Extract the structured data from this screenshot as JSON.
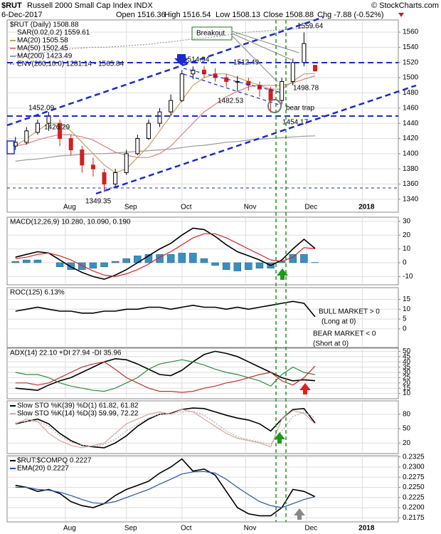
{
  "header": {
    "symbol": "$RUT",
    "name": "Russell 2000 Small Cap Index INDX",
    "credit": "© StockCharts.com",
    "date": "6-Dec-2017",
    "quote": [
      "Open 1516.36",
      "High 1516.54",
      "Low 1508.13",
      "Close 1508.88",
      "Chg -7.88 (-0.52%)"
    ]
  },
  "chart_data": [
    {
      "type": "candlestick",
      "title": "$RUT (Daily) 1508.88",
      "sar_label": "SAR(0.02,0.2) 1559.61",
      "x": [
        1,
        5,
        9,
        13,
        17,
        21,
        25,
        29,
        33,
        37,
        41,
        45,
        49,
        53,
        57,
        61,
        65,
        69,
        73,
        77,
        81,
        85,
        89,
        93,
        97,
        101,
        105,
        109
      ],
      "xlim": [
        -2,
        139
      ],
      "xticks": [
        {
          "value": 19,
          "label": "Aug"
        },
        {
          "value": 41,
          "label": "Sep"
        },
        {
          "value": 61,
          "label": "Oct"
        },
        {
          "value": 84,
          "label": "Nov"
        },
        {
          "value": 106,
          "label": "Dec"
        },
        {
          "value": 126,
          "label": "2018"
        }
      ],
      "ylim": [
        1323,
        1576
      ],
      "yticks": [
        1340,
        1360,
        1380,
        1400,
        1420,
        1440,
        1460,
        1480,
        1500,
        1520,
        1540,
        1560
      ],
      "grid": true,
      "open": [
        1410,
        1415,
        1428,
        1440,
        1440,
        1420,
        1405,
        1385,
        1375,
        1360,
        1375,
        1400,
        1420,
        1440,
        1455,
        1470,
        1505,
        1510,
        1505,
        1500,
        1495,
        1495,
        1490,
        1485,
        1470,
        1495,
        1520,
        1516.36
      ],
      "high": [
        1422,
        1435,
        1445,
        1455,
        1445,
        1425,
        1410,
        1395,
        1380,
        1380,
        1405,
        1425,
        1445,
        1460,
        1478,
        1510,
        1514.94,
        1515,
        1512.49,
        1505,
        1502,
        1500,
        1495,
        1488,
        1500,
        1525,
        1559.64,
        1516.54
      ],
      "low": [
        1405,
        1412,
        1425,
        1430,
        1410,
        1398,
        1375,
        1370,
        1349.35,
        1355,
        1372,
        1398,
        1418,
        1435,
        1450,
        1468,
        1498,
        1500,
        1495,
        1488,
        1482.53,
        1483,
        1475,
        1454.17,
        1465,
        1490,
        1515,
        1508.13
      ],
      "close": [
        1415,
        1430,
        1440,
        1450,
        1420,
        1405,
        1385,
        1380,
        1360,
        1375,
        1400,
        1420,
        1440,
        1455,
        1470,
        1505,
        1510,
        1505,
        1500,
        1495,
        1495,
        1490,
        1485,
        1470,
        1495,
        1520,
        1545,
        1508.88
      ],
      "series": [
        {
          "name": "MA(20) 1505.58",
          "color": "#c8a060",
          "values": [
            1410,
            1420,
            1430,
            1440,
            1440,
            1430,
            1415,
            1400,
            1385,
            1375,
            1380,
            1395,
            1410,
            1430,
            1450,
            1470,
            1490,
            1500,
            1505,
            1505,
            1500,
            1495,
            1490,
            1485,
            1485,
            1495,
            1505,
            1505.58
          ]
        },
        {
          "name": "MA(50) 1502.45",
          "color": "#e08080",
          "values": [
            1410,
            1413,
            1418,
            1422,
            1425,
            1425,
            1422,
            1418,
            1410,
            1402,
            1398,
            1395,
            1395,
            1400,
            1410,
            1425,
            1440,
            1455,
            1465,
            1475,
            1482,
            1488,
            1490,
            1490,
            1490,
            1493,
            1498,
            1502.45
          ]
        },
        {
          "name": "MA(200) 1423.49",
          "color": "#999999",
          "values": [
            1390,
            1392,
            1393,
            1395,
            1397,
            1398,
            1399,
            1400,
            1400,
            1401,
            1402,
            1403,
            1404,
            1405,
            1406,
            1408,
            1410,
            1411,
            1413,
            1415,
            1416,
            1418,
            1419,
            1420,
            1421,
            1422,
            1423,
            1423.49
          ]
        },
        {
          "name": "ENV(200,10.0) 1281.14 - 1565.84",
          "color": "#999999",
          "style": "dotted",
          "values": [
            1529,
            1531,
            1532,
            1534,
            1536,
            1538,
            1539,
            1540,
            1540,
            1541,
            1542,
            1543,
            1544,
            1546,
            1547,
            1549,
            1551,
            1552,
            1554,
            1556,
            1558,
            1560,
            1561,
            1562,
            1563,
            1564,
            1565,
            1565.84
          ]
        }
      ],
      "annotations": [
        "Breakout",
        "1514.94",
        "1512.49",
        "1452.09",
        "1426.29",
        "1349.35",
        "1482.53",
        "1498.78",
        "1454.17",
        "1559.64",
        "bear trap"
      ]
    },
    {
      "type": "line",
      "title": "MACD(12,26,9) 10.280, 10.090, 0.190",
      "x": [
        1,
        5,
        9,
        13,
        17,
        21,
        25,
        29,
        33,
        37,
        41,
        45,
        49,
        53,
        57,
        61,
        65,
        69,
        73,
        77,
        81,
        85,
        89,
        93,
        97,
        101,
        105,
        109
      ],
      "ylim": [
        -16,
        33
      ],
      "yticks": [
        -10,
        0,
        10,
        20,
        30
      ],
      "grid": true,
      "series": [
        {
          "color": "#3a8fc0",
          "kind": "bar",
          "values": [
            1,
            2,
            2,
            0,
            -3,
            -5,
            -5,
            -4,
            -3,
            1,
            3,
            5,
            6,
            6,
            6,
            7,
            7,
            3,
            -2,
            -5,
            -6,
            -5,
            -4,
            -4,
            1,
            6,
            6,
            0.19
          ]
        },
        {
          "color": "#000000",
          "values": [
            4,
            6,
            8,
            7,
            2,
            -3,
            -7,
            -10,
            -12,
            -9,
            -5,
            0,
            5,
            10,
            14,
            20,
            25,
            24,
            19,
            13,
            8,
            5,
            2,
            -2,
            2,
            10,
            17,
            10.28
          ]
        },
        {
          "color": "#e02020",
          "values": [
            3,
            4,
            6,
            7,
            5,
            2,
            -2,
            -6,
            -9,
            -10,
            -8,
            -5,
            -1,
            4,
            8,
            13,
            18,
            21,
            21,
            18,
            14,
            10,
            6,
            2,
            1,
            4,
            11,
            10.09
          ]
        }
      ]
    },
    {
      "type": "line",
      "title": "ROC(125) 6.13%",
      "x": [
        1,
        5,
        9,
        13,
        17,
        21,
        25,
        29,
        33,
        37,
        41,
        45,
        49,
        53,
        57,
        61,
        65,
        69,
        73,
        77,
        81,
        85,
        89,
        93,
        97,
        101,
        105,
        109
      ],
      "ylim": [
        -9.5,
        21
      ],
      "yticks": [
        0,
        5,
        10,
        15
      ],
      "grid": true,
      "series": [
        {
          "color": "#000000",
          "values": [
            9,
            10,
            11,
            10,
            9,
            9,
            8,
            8,
            9,
            9,
            10,
            10,
            11,
            11,
            10,
            11,
            12,
            11,
            11,
            10,
            11,
            10,
            11,
            12,
            13,
            14,
            13,
            6.13
          ]
        }
      ],
      "annotations": [
        "BULL MARKET > 0",
        "(Long at 0)",
        "BEAR MARKET < 0",
        "(Short at 0)"
      ]
    },
    {
      "type": "line",
      "title": "ADX(14) 22.10 +DI 27.94 -DI 35.96",
      "x": [
        1,
        5,
        9,
        13,
        17,
        21,
        25,
        29,
        33,
        37,
        41,
        45,
        49,
        53,
        57,
        61,
        65,
        69,
        73,
        77,
        81,
        85,
        89,
        93,
        97,
        101,
        105,
        109
      ],
      "ylim": [
        5,
        53
      ],
      "yticks": [
        10,
        15,
        20,
        25,
        30,
        35,
        40,
        45,
        50
      ],
      "grid": true,
      "series": [
        {
          "color": "#000000",
          "values": [
            15,
            14,
            13,
            18,
            22,
            25,
            30,
            35,
            40,
            43,
            42,
            38,
            33,
            28,
            27,
            32,
            40,
            47,
            50,
            48,
            45,
            40,
            35,
            30,
            25,
            22,
            23,
            22.1
          ]
        },
        {
          "color": "#2e8b3e",
          "values": [
            30,
            28,
            28,
            25,
            20,
            17,
            15,
            13,
            12,
            15,
            20,
            25,
            33,
            38,
            40,
            42,
            40,
            37,
            33,
            30,
            28,
            25,
            22,
            17,
            28,
            35,
            30,
            27.94
          ]
        },
        {
          "color": "#c03030",
          "values": [
            20,
            20,
            18,
            20,
            25,
            30,
            35,
            38,
            40,
            33,
            25,
            20,
            15,
            12,
            12,
            11,
            12,
            15,
            17,
            20,
            22,
            25,
            28,
            30,
            22,
            18,
            25,
            35.96
          ]
        }
      ]
    },
    {
      "type": "line",
      "x": [
        1,
        5,
        9,
        13,
        17,
        21,
        25,
        29,
        33,
        37,
        41,
        45,
        49,
        53,
        57,
        61,
        65,
        69,
        73,
        77,
        81,
        85,
        89,
        93,
        97,
        101,
        105,
        109
      ],
      "ylim": [
        -2,
        108
      ],
      "yticks": [
        20,
        50,
        80
      ],
      "grid": true,
      "series": [
        {
          "name": "Slow STO %K(39) %D(1) 61.82, 61.82",
          "color": "#000000",
          "values": [
            60,
            65,
            70,
            60,
            40,
            25,
            15,
            12,
            10,
            20,
            35,
            55,
            70,
            80,
            82,
            90,
            93,
            92,
            85,
            78,
            72,
            68,
            60,
            45,
            70,
            90,
            92,
            61.82
          ]
        },
        {
          "name": "Slow STO %K(14) %D(3) 59.99, 72.22",
          "color": "#e0a0a0",
          "values": [
            60,
            70,
            65,
            40,
            25,
            15,
            10,
            15,
            20,
            40,
            60,
            70,
            80,
            85,
            80,
            90,
            85,
            70,
            55,
            40,
            30,
            25,
            20,
            12,
            70,
            88,
            82,
            59.99
          ]
        },
        {
          "color": "#aaaaaa",
          "style": "dotted",
          "values": [
            62,
            65,
            65,
            55,
            35,
            22,
            15,
            13,
            17,
            28,
            45,
            60,
            72,
            80,
            82,
            85,
            86,
            78,
            62,
            45,
            33,
            27,
            22,
            17,
            45,
            75,
            85,
            72.22
          ]
        }
      ]
    },
    {
      "type": "line",
      "x": [
        1,
        5,
        9,
        13,
        17,
        21,
        25,
        29,
        33,
        37,
        41,
        45,
        49,
        53,
        57,
        61,
        65,
        69,
        73,
        77,
        81,
        85,
        89,
        93,
        97,
        101,
        105,
        109
      ],
      "xlim": [
        -2,
        139
      ],
      "xticks": [
        {
          "value": 19,
          "label": "Aug"
        },
        {
          "value": 41,
          "label": "Sep"
        },
        {
          "value": 61,
          "label": "Oct"
        },
        {
          "value": 84,
          "label": "Nov"
        },
        {
          "value": 106,
          "label": "Dec"
        },
        {
          "value": 126,
          "label": "2018"
        }
      ],
      "ylim": [
        0.2165,
        0.2328
      ],
      "yticks": [
        {
          "value": 0.2175,
          "label": "0.2175"
        },
        {
          "value": 0.22,
          "label": "0.2200"
        },
        {
          "value": 0.2225,
          "label": "0.2225"
        },
        {
          "value": 0.225,
          "label": "0.2250"
        },
        {
          "value": 0.2275,
          "label": "0.2275"
        },
        {
          "value": 0.23,
          "label": "0.2300"
        },
        {
          "value": 0.2325,
          "label": "0.2325"
        }
      ],
      "grid": true,
      "series": [
        {
          "name": "$RUT:$COMPQ 0.2227",
          "color": "#000000",
          "values": [
            0.2255,
            0.225,
            0.224,
            0.2245,
            0.2235,
            0.2215,
            0.2205,
            0.22,
            0.221,
            0.223,
            0.2245,
            0.2255,
            0.2265,
            0.2285,
            0.23,
            0.232,
            0.229,
            0.2295,
            0.228,
            0.224,
            0.22,
            0.2185,
            0.218,
            0.218,
            0.22,
            0.2245,
            0.224,
            0.2227
          ]
        },
        {
          "name": "EMA(20) 0.2227",
          "color": "#2a4fb0",
          "values": [
            0.225,
            0.225,
            0.2245,
            0.2243,
            0.2238,
            0.223,
            0.222,
            0.2212,
            0.221,
            0.2215,
            0.2225,
            0.2235,
            0.2245,
            0.2258,
            0.227,
            0.2283,
            0.2288,
            0.2289,
            0.2285,
            0.227,
            0.225,
            0.2232,
            0.2215,
            0.2205,
            0.22,
            0.221,
            0.222,
            0.2227
          ]
        }
      ]
    }
  ]
}
